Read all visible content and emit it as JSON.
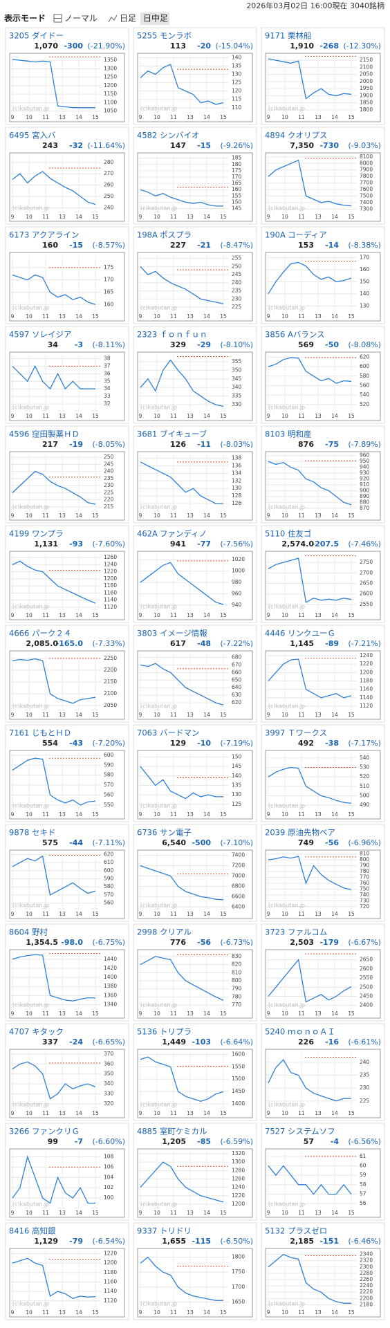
{
  "header": {
    "timestamp": "2026年03月02日 16:00現在 3040銘柄",
    "mode_label": "表示モード",
    "modes": [
      "ノーマル",
      "日足",
      "日中足"
    ]
  },
  "x_labels": [
    "9",
    "10",
    "11",
    "13",
    "14",
    "15"
  ],
  "watermark": "(c)kabutan.jp",
  "stocks": [
    {
      "code": "3205",
      "name": "ダイドー",
      "price": "1,070",
      "change": "-300",
      "change_pct": "(-21.90%)",
      "ylim": [
        1040,
        1375
      ],
      "yticks": [
        1050,
        1100,
        1150,
        1200,
        1250,
        1300,
        1350
      ],
      "ref": 1370,
      "values": [
        1355,
        1350,
        1345,
        1340,
        1345,
        1340,
        1080,
        1075,
        1070,
        1070,
        1070,
        1070
      ]
    },
    {
      "code": "5255",
      "name": "モンラボ",
      "price": "113",
      "change": "-20",
      "change_pct": "(-15.04%)",
      "ylim": [
        107,
        141
      ],
      "yticks": [
        110,
        115,
        120,
        125,
        130,
        135,
        140
      ],
      "ref": 133,
      "values": [
        128,
        132,
        130,
        134,
        136,
        122,
        120,
        118,
        113,
        114,
        112,
        113
      ]
    },
    {
      "code": "9171",
      "name": "栗林船",
      "price": "1,910",
      "change": "-268",
      "change_pct": "(-12.30%)",
      "ylim": [
        1780,
        2180
      ],
      "yticks": [
        1800,
        1850,
        1900,
        1950,
        2000,
        2050,
        2100,
        2150
      ],
      "ref": 2178,
      "values": [
        2160,
        2150,
        2140,
        2130,
        2145,
        1880,
        1920,
        1950,
        1910,
        1900,
        1915,
        1910
      ]
    },
    {
      "code": "6495",
      "name": "宮入バ",
      "price": "243",
      "change": "-32",
      "change_pct": "(-11.64%)",
      "ylim": [
        236,
        286
      ],
      "yticks": [
        240,
        250,
        260,
        270,
        280
      ],
      "ref": 275,
      "values": [
        265,
        270,
        262,
        268,
        272,
        266,
        262,
        258,
        255,
        250,
        245,
        243
      ]
    },
    {
      "code": "4582",
      "name": "シンバイオ",
      "price": "147",
      "change": "-15",
      "change_pct": "(-9.26%)",
      "ylim": [
        142,
        187
      ],
      "yticks": [
        145,
        150,
        155,
        160,
        165,
        170,
        175,
        180,
        185
      ],
      "ref": 162,
      "values": [
        160,
        158,
        155,
        157,
        154,
        152,
        150,
        149,
        150,
        148,
        147,
        147
      ]
    },
    {
      "code": "4894",
      "name": "クオリプス",
      "price": "7,350",
      "change": "-730",
      "change_pct": "(-9.03%)",
      "ylim": [
        7250,
        8120
      ],
      "yticks": [
        7300,
        7400,
        7500,
        7600,
        7700,
        7800,
        7900,
        8000,
        8100
      ],
      "ref": 8080,
      "values": [
        7800,
        7900,
        7950,
        8000,
        8050,
        7500,
        7450,
        7400,
        7420,
        7380,
        7360,
        7350
      ]
    },
    {
      "code": "6173",
      "name": "アクアライン",
      "price": "160",
      "change": "-15",
      "change_pct": "(-8.57%)",
      "ylim": [
        157,
        180
      ],
      "yticks": [
        160,
        165,
        170,
        175
      ],
      "ref": 175,
      "values": [
        172,
        171,
        170,
        172,
        171,
        165,
        163,
        164,
        162,
        163,
        161,
        160
      ]
    },
    {
      "code": "198A",
      "name": "ポスプラ",
      "price": "227",
      "change": "-21",
      "change_pct": "(-8.47%)",
      "ylim": [
        222,
        257
      ],
      "yticks": [
        225,
        230,
        235,
        240,
        245,
        250,
        255
      ],
      "ref": 248,
      "values": [
        250,
        245,
        247,
        243,
        240,
        238,
        236,
        233,
        230,
        229,
        228,
        227
      ]
    },
    {
      "code": "190A",
      "name": "コーディア",
      "price": "153",
      "change": "-14",
      "change_pct": "(-8.38%)",
      "ylim": [
        125,
        172
      ],
      "yticks": [
        130,
        140,
        150,
        160,
        170
      ],
      "ref": 167,
      "values": [
        140,
        150,
        158,
        165,
        166,
        163,
        156,
        152,
        154,
        150,
        151,
        153
      ]
    },
    {
      "code": "4597",
      "name": "ソレイジア",
      "price": "34",
      "change": "-3",
      "change_pct": "(-8.11%)",
      "ylim": [
        31,
        38.5
      ],
      "yticks": [
        32,
        33,
        34,
        35,
        36,
        37,
        38
      ],
      "ref": 37,
      "values": [
        37,
        36,
        35,
        37,
        35,
        34,
        36,
        34,
        35,
        34,
        34,
        34
      ]
    },
    {
      "code": "2323",
      "name": "ｆｏｎｆｕｎ",
      "price": "329",
      "change": "-29",
      "change_pct": "(-8.10%)",
      "ylim": [
        326,
        359
      ],
      "yticks": [
        330,
        335,
        340,
        345,
        350,
        355
      ],
      "ref": 358,
      "values": [
        340,
        345,
        338,
        350,
        356,
        350,
        345,
        338,
        335,
        332,
        330,
        329
      ]
    },
    {
      "code": "3856",
      "name": "Aバランス",
      "price": "569",
      "change": "-50",
      "change_pct": "(-8.08%)",
      "ylim": [
        505,
        625
      ],
      "yticks": [
        520,
        540,
        560,
        580,
        600,
        620
      ],
      "ref": 619,
      "values": [
        600,
        605,
        615,
        619,
        618,
        590,
        580,
        570,
        575,
        565,
        570,
        569
      ]
    },
    {
      "code": "4596",
      "name": "窪田製薬ＨＤ",
      "price": "217",
      "change": "-19",
      "change_pct": "(-8.05%)",
      "ylim": [
        212,
        252
      ],
      "yticks": [
        215,
        220,
        225,
        230,
        235,
        240,
        245,
        250
      ],
      "ref": 236,
      "values": [
        225,
        230,
        235,
        240,
        238,
        233,
        230,
        228,
        225,
        222,
        218,
        217
      ]
    },
    {
      "code": "3681",
      "name": "ブイキューブ",
      "price": "126",
      "change": "-11",
      "change_pct": "(-8.03%)",
      "ylim": [
        124,
        139
      ],
      "yticks": [
        126,
        128,
        130,
        132,
        134,
        136,
        138
      ],
      "ref": 137,
      "values": [
        137,
        136,
        135,
        134,
        133,
        131,
        129,
        130,
        128,
        127,
        126,
        126
      ]
    },
    {
      "code": "8103",
      "name": "明和産",
      "price": "876",
      "change": "-75",
      "change_pct": "(-7.89%)",
      "ylim": [
        865,
        962
      ],
      "yticks": [
        870,
        880,
        890,
        900,
        910,
        920,
        930,
        940,
        950,
        960
      ],
      "ref": 951,
      "values": [
        950,
        945,
        948,
        940,
        935,
        920,
        915,
        905,
        900,
        890,
        880,
        876
      ]
    },
    {
      "code": "4199",
      "name": "ワンプラ",
      "price": "1,131",
      "change": "-93",
      "change_pct": "(-7.60%)",
      "ylim": [
        1110,
        1270
      ],
      "yticks": [
        1120,
        1140,
        1160,
        1180,
        1200,
        1220,
        1240,
        1260
      ],
      "ref": 1224,
      "values": [
        1240,
        1250,
        1235,
        1225,
        1220,
        1200,
        1180,
        1170,
        1160,
        1150,
        1140,
        1131
      ]
    },
    {
      "code": "462A",
      "name": "ファンディノ",
      "price": "941",
      "change": "-77",
      "change_pct": "(-7.56%)",
      "ylim": [
        930,
        1030
      ],
      "yticks": [
        940,
        960,
        980,
        1000,
        1020
      ],
      "ref": 1018,
      "values": [
        980,
        990,
        1000,
        1010,
        1015,
        995,
        985,
        975,
        965,
        955,
        945,
        941
      ]
    },
    {
      "code": "5110",
      "name": "住友ゴ",
      "price": "2,574.0",
      "change": "-207.5",
      "change_pct": "(-7.46%)",
      "ylim": [
        2520,
        2790
      ],
      "yticks": [
        2550,
        2600,
        2650,
        2700,
        2750
      ],
      "ref": 2781.5,
      "values": [
        2720,
        2740,
        2750,
        2760,
        2770,
        2560,
        2580,
        2570,
        2575,
        2570,
        2580,
        2574
      ]
    },
    {
      "code": "4666",
      "name": "パーク２４",
      "price": "2,085.0",
      "change": "-165.0",
      "change_pct": "(-7.33%)",
      "ylim": [
        2030,
        2270
      ],
      "yticks": [
        2050,
        2100,
        2150,
        2200,
        2250
      ],
      "ref": 2250,
      "values": [
        2240,
        2245,
        2242,
        2248,
        2240,
        2100,
        2080,
        2070,
        2060,
        2075,
        2080,
        2085
      ]
    },
    {
      "code": "3803",
      "name": "イメージ情報",
      "price": "617",
      "change": "-48",
      "change_pct": "(-7.22%)",
      "ylim": [
        610,
        685
      ],
      "yticks": [
        620,
        630,
        640,
        650,
        660,
        670,
        680
      ],
      "ref": 665,
      "values": [
        670,
        668,
        672,
        665,
        660,
        650,
        640,
        635,
        630,
        625,
        620,
        617
      ]
    },
    {
      "code": "4446",
      "name": "リンクユーＧ",
      "price": "1,145",
      "change": "-89",
      "change_pct": "(-7.21%)",
      "ylim": [
        1110,
        1245
      ],
      "yticks": [
        1120,
        1140,
        1160,
        1180,
        1200,
        1220,
        1240
      ],
      "ref": 1234,
      "values": [
        1180,
        1200,
        1220,
        1230,
        1232,
        1160,
        1150,
        1140,
        1145,
        1150,
        1140,
        1145
      ]
    },
    {
      "code": "7161",
      "name": "じもとＨＤ",
      "price": "554",
      "change": "-43",
      "change_pct": "(-7.20%)",
      "ylim": [
        545,
        602
      ],
      "yticks": [
        550,
        560,
        570,
        580,
        590,
        600
      ],
      "ref": 597,
      "values": [
        585,
        590,
        595,
        597,
        596,
        560,
        555,
        552,
        555,
        550,
        553,
        554
      ]
    },
    {
      "code": "7063",
      "name": "バードマン",
      "price": "129",
      "change": "-10",
      "change_pct": "(-7.19%)",
      "ylim": [
        122,
        152
      ],
      "yticks": [
        125,
        130,
        135,
        140,
        145,
        150
      ],
      "ref": 139,
      "values": [
        145,
        140,
        135,
        138,
        132,
        130,
        128,
        131,
        129,
        130,
        129,
        129
      ]
    },
    {
      "code": "3997",
      "name": "Ｔワークス",
      "price": "492",
      "change": "-38",
      "change_pct": "(-7.17%)",
      "ylim": [
        485,
        545
      ],
      "yticks": [
        490,
        500,
        510,
        520,
        530,
        540
      ],
      "ref": 530,
      "values": [
        520,
        525,
        528,
        530,
        529,
        510,
        505,
        500,
        498,
        495,
        493,
        492
      ]
    },
    {
      "code": "9878",
      "name": "セキド",
      "price": "575",
      "change": "-44",
      "change_pct": "(-7.11%)",
      "ylim": [
        552,
        622
      ],
      "yticks": [
        560,
        570,
        580,
        590,
        600,
        610,
        620
      ],
      "ref": 619,
      "values": [
        605,
        610,
        615,
        612,
        618,
        570,
        575,
        580,
        585,
        578,
        572,
        575
      ]
    },
    {
      "code": "6736",
      "name": "サン電子",
      "price": "6,540",
      "change": "-500",
      "change_pct": "(-7.10%)",
      "ylim": [
        6350,
        7450
      ],
      "yticks": [
        6400,
        6600,
        6800,
        7000,
        7200,
        7400
      ],
      "ref": 7040,
      "values": [
        7200,
        7150,
        7100,
        7050,
        7000,
        6800,
        6700,
        6650,
        6600,
        6580,
        6550,
        6540
      ]
    },
    {
      "code": "2039",
      "name": "原油先物ベア",
      "price": "749",
      "change": "-56",
      "change_pct": "(-6.96%)",
      "ylim": [
        715,
        812
      ],
      "yticks": [
        720,
        730,
        740,
        750,
        760,
        770,
        780,
        790,
        800,
        810
      ],
      "ref": 805,
      "values": [
        800,
        802,
        805,
        803,
        806,
        760,
        790,
        775,
        765,
        758,
        752,
        749
      ]
    },
    {
      "code": "8604",
      "name": "野村",
      "price": "1,354.5",
      "change": "-98.0",
      "change_pct": "(-6.75%)",
      "ylim": [
        1330,
        1455
      ],
      "yticks": [
        1340,
        1360,
        1380,
        1400,
        1420,
        1440
      ],
      "ref": 1452.5,
      "values": [
        1440,
        1445,
        1448,
        1450,
        1449,
        1360,
        1355,
        1350,
        1348,
        1352,
        1355,
        1354.5
      ]
    },
    {
      "code": "2998",
      "name": "クリアル",
      "price": "776",
      "change": "-56",
      "change_pct": "(-6.73%)",
      "ylim": [
        765,
        835
      ],
      "yticks": [
        770,
        780,
        790,
        800,
        810,
        820,
        830
      ],
      "ref": 832,
      "values": [
        820,
        825,
        830,
        828,
        826,
        810,
        800,
        795,
        790,
        785,
        780,
        776
      ]
    },
    {
      "code": "3723",
      "name": "ファルコム",
      "price": "2,503",
      "change": "-179",
      "change_pct": "(-6.67%)",
      "ylim": [
        2380,
        2690
      ],
      "yticks": [
        2400,
        2450,
        2500,
        2550,
        2600,
        2650
      ],
      "ref": 2682,
      "values": [
        2450,
        2500,
        2550,
        2600,
        2650,
        2420,
        2440,
        2460,
        2430,
        2450,
        2480,
        2503
      ]
    },
    {
      "code": "4707",
      "name": "キタック",
      "price": "337",
      "change": "-24",
      "change_pct": "(-6.65%)",
      "ylim": [
        315,
        372
      ],
      "yticks": [
        320,
        330,
        340,
        350,
        360,
        370
      ],
      "ref": 361,
      "values": [
        355,
        360,
        362,
        358,
        350,
        325,
        330,
        340,
        335,
        338,
        340,
        337
      ]
    },
    {
      "code": "5136",
      "name": "トリプラ",
      "price": "1,449",
      "change": "-103",
      "change_pct": "(-6.64%)",
      "ylim": [
        1380,
        1610
      ],
      "yticks": [
        1400,
        1450,
        1500,
        1550,
        1600
      ],
      "ref": 1552,
      "values": [
        1580,
        1590,
        1570,
        1560,
        1550,
        1450,
        1430,
        1420,
        1410,
        1420,
        1440,
        1449
      ]
    },
    {
      "code": "5240",
      "name": "ｍｏｎｏＡＩ",
      "price": "226",
      "change": "-16",
      "change_pct": "(-6.61%)",
      "ylim": [
        222,
        244
      ],
      "yticks": [
        225,
        230,
        235,
        240
      ],
      "ref": 242,
      "values": [
        232,
        238,
        241,
        236,
        235,
        230,
        228,
        227,
        226,
        225,
        226,
        226
      ]
    },
    {
      "code": "3266",
      "name": "ファンクリＧ",
      "price": "99",
      "change": "-7",
      "change_pct": "(-6.60%)",
      "ylim": [
        98,
        109
      ],
      "yticks": [
        100,
        102,
        104,
        106,
        108
      ],
      "ref": 106,
      "values": [
        100,
        102,
        108,
        104,
        100,
        99,
        104,
        101,
        100,
        102,
        99,
        99
      ]
    },
    {
      "code": "4885",
      "name": "室町ケミカル",
      "price": "1,205",
      "change": "-85",
      "change_pct": "(-6.59%)",
      "ylim": [
        1190,
        1325
      ],
      "yticks": [
        1200,
        1220,
        1240,
        1260,
        1280,
        1300,
        1320
      ],
      "ref": 1290,
      "values": [
        1240,
        1260,
        1280,
        1300,
        1290,
        1260,
        1240,
        1230,
        1220,
        1215,
        1210,
        1205
      ]
    },
    {
      "code": "7527",
      "name": "システムソフ",
      "price": "57",
      "change": "-4",
      "change_pct": "(-6.56%)",
      "ylim": [
        55.5,
        61.5
      ],
      "yticks": [
        56,
        57,
        58,
        59,
        60,
        61
      ],
      "ref": 61,
      "values": [
        60,
        59,
        60,
        59,
        58,
        58,
        57,
        58,
        57,
        57,
        58,
        57
      ]
    },
    {
      "code": "8416",
      "name": "高知銀",
      "price": "1,129",
      "change": "-79",
      "change_pct": "(-6.54%)",
      "ylim": [
        1105,
        1225
      ],
      "yticks": [
        1120,
        1140,
        1160,
        1180,
        1200,
        1220
      ],
      "ref": 1208,
      "values": [
        1200,
        1205,
        1210,
        1200,
        1195,
        1130,
        1140,
        1135,
        1125,
        1130,
        1128,
        1129
      ]
    },
    {
      "code": "9337",
      "name": "トリドリ",
      "price": "1,655",
      "change": "-115",
      "change_pct": "(-6.50%)",
      "ylim": [
        1630,
        1820
      ],
      "yticks": [
        1650,
        1700,
        1750,
        1800
      ],
      "ref": 1770,
      "values": [
        1780,
        1800,
        1770,
        1750,
        1740,
        1700,
        1680,
        1670,
        1665,
        1660,
        1655,
        1655
      ]
    },
    {
      "code": "5132",
      "name": "プラスゼロ",
      "price": "2,185",
      "change": "-151",
      "change_pct": "(-6.46%)",
      "ylim": [
        2170,
        2350
      ],
      "yticks": [
        2180,
        2200,
        2220,
        2240,
        2260,
        2280,
        2300,
        2320,
        2340
      ],
      "ref": 2336,
      "values": [
        2300,
        2320,
        2340,
        2330,
        2325,
        2250,
        2230,
        2220,
        2200,
        2190,
        2185,
        2185
      ]
    }
  ]
}
